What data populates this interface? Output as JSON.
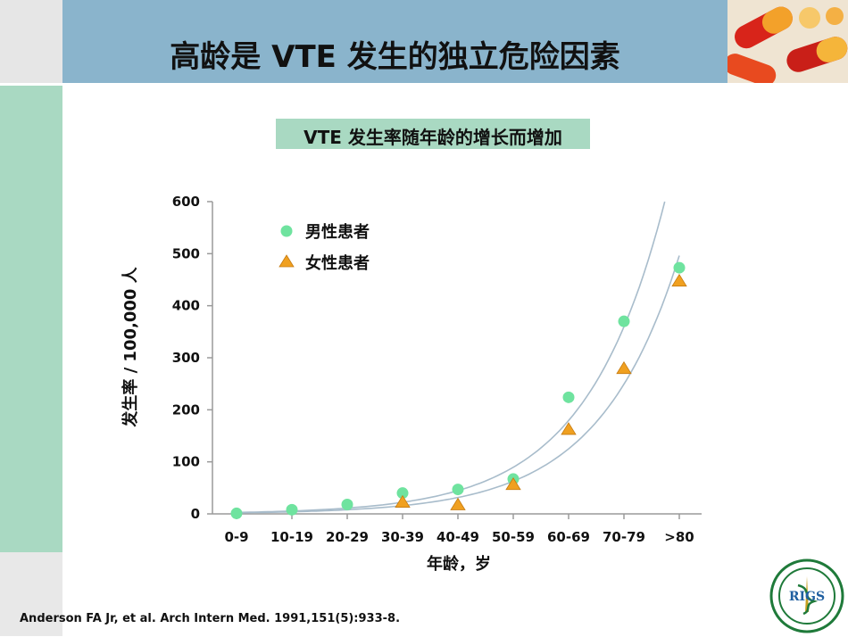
{
  "slide": {
    "title": "高龄是 VTE 发生的独立危险因素",
    "citation": "Anderson FA Jr, et  al. Arch Intern Med. 1991,151(5):933-8.",
    "logo_text": "RIGS"
  },
  "chart_data": {
    "type": "scatter",
    "title": "VTE 发生率随年龄的增长而增加",
    "xlabel": "年龄，岁",
    "ylabel": "发生率 / 100,000 人",
    "categories": [
      "0-9",
      "10-19",
      "20-29",
      "30-39",
      "40-49",
      "50-59",
      "60-69",
      "70-79",
      ">80"
    ],
    "ylim": [
      0,
      600
    ],
    "yticks": [
      0,
      100,
      200,
      300,
      400,
      500,
      600
    ],
    "series": [
      {
        "name": "男性患者",
        "marker": "circle",
        "color": "#6fe39f",
        "values": [
          1,
          8,
          18,
          40,
          47,
          67,
          224,
          370,
          473
        ]
      },
      {
        "name": "女性患者",
        "marker": "triangle",
        "color": "#f0a020",
        "values": [
          null,
          null,
          null,
          23,
          18,
          57,
          163,
          280,
          448
        ]
      }
    ],
    "trend_lines": true,
    "legend_position": "top-left"
  }
}
